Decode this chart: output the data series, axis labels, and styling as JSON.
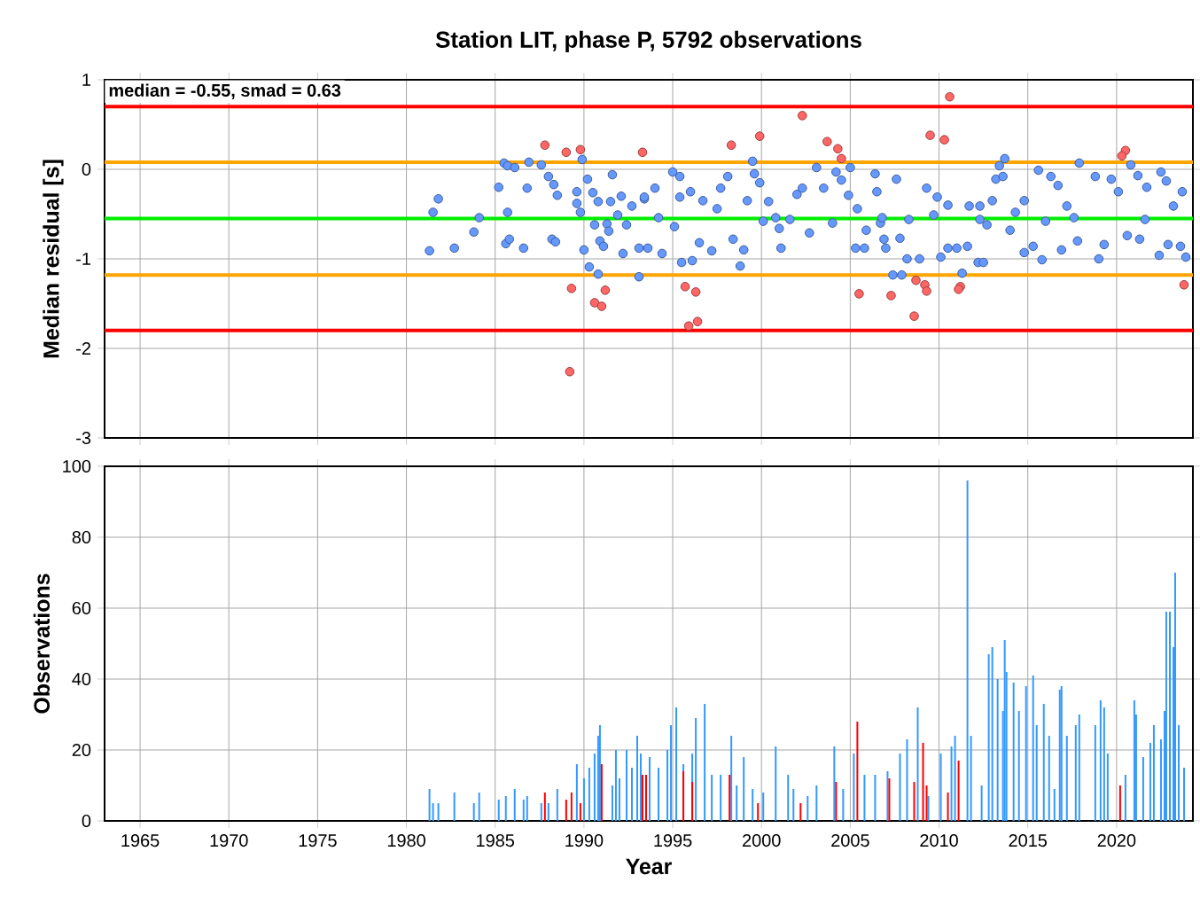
{
  "chart_data": [
    {
      "type": "scatter",
      "title": "Station LIT, phase P, 5792 observations",
      "ylabel": "Median residual [s]",
      "xlim": [
        1963,
        2024.3
      ],
      "ylim": [
        -3,
        1
      ],
      "xticks": [
        1965,
        1970,
        1975,
        1980,
        1985,
        1990,
        1995,
        2000,
        2005,
        2010,
        2015,
        2020
      ],
      "yticks": [
        -3,
        -2,
        -1,
        0,
        1
      ],
      "grid": true,
      "tick_labels": "y",
      "marker": "circle",
      "annotations": [
        "median = -0.55, smad = 0.63"
      ],
      "ref_lines": [
        {
          "axis": "y",
          "value": 0.7,
          "color": "#ff0000"
        },
        {
          "axis": "y",
          "value": -1.8,
          "color": "#ff0000"
        },
        {
          "axis": "y",
          "value": 0.08,
          "color": "#ffa500"
        },
        {
          "axis": "y",
          "value": -1.18,
          "color": "#ffa500"
        },
        {
          "axis": "y",
          "value": -0.55,
          "color": "#00ee00"
        }
      ],
      "series": [
        {
          "color": "#6699ff",
          "x": [
            1981.3,
            1981.5,
            1981.8,
            1982.7,
            1983.8,
            1984.1,
            1985.2,
            1985.5,
            1985.7,
            1986.1,
            1985.6,
            1985.8,
            1985.7,
            1986.6,
            1986.8,
            1986.9,
            1987.6,
            1988.0,
            1988.3,
            1988.5,
            1988.2,
            1988.4,
            1989.9,
            1990.2,
            1989.6,
            1989.6,
            1989.8,
            1990.0,
            1990.3,
            1990.8,
            1990.5,
            1990.8,
            1990.6,
            1990.9,
            1991.1,
            1991.6,
            1991.5,
            1991.3,
            1991.4,
            1991.9,
            1992.1,
            1992.2,
            1992.4,
            1992.7,
            1993.1,
            1993.1,
            1993.4,
            1993.4,
            1993.6,
            1994.0,
            1994.2,
            1994.4,
            1995.0,
            1995.4,
            1995.4,
            1995.5,
            1995.1,
            1996.0,
            1996.1,
            1996.5,
            1996.7,
            1997.2,
            1997.5,
            1997.7,
            1998.1,
            1998.4,
            1998.8,
            1999.0,
            1999.2,
            1999.5,
            1999.6,
            1999.9,
            2000.1,
            2000.4,
            2001.1,
            2001.0,
            2001.6,
            2002.0,
            2002.3,
            2002.7,
            2003.1,
            2003.5,
            2004.0,
            2004.2,
            2004.5,
            2004.9,
            2005.0,
            2005.3,
            2005.4,
            2005.8,
            2005.9,
            2006.4,
            2006.5,
            2006.7,
            2006.9,
            2007.0,
            2007.4,
            2007.6,
            2007.8,
            2007.9,
            2008.2,
            2008.3,
            2008.9,
            2009.3,
            2009.7,
            2009.9,
            2010.1,
            2010.5,
            2010.5,
            2011.0,
            2011.3,
            2011.6,
            2011.7,
            2012.2,
            2012.5,
            2012.3,
            2012.7,
            2013.0,
            2013.2,
            2013.4,
            2013.7,
            2013.6,
            2014.0,
            2014.3,
            2014.8,
            2014.8,
            2015.3,
            2015.6,
            2015.8,
            2016.0,
            2016.3,
            2016.7,
            2016.9,
            2017.2,
            2017.8,
            2017.9,
            2018.8,
            2019.0,
            2019.3,
            2019.7,
            2020.1,
            2020.6,
            2020.8,
            2021.3,
            2021.2,
            2021.7,
            2022.4,
            2022.5,
            2022.8,
            2022.9,
            2023.2,
            2023.6,
            2023.7,
            2023.9,
            2000.8,
            2006.8,
            2012.3,
            2017.6,
            2021.6
          ],
          "values": [
            -0.91,
            -0.48,
            -0.33,
            -0.88,
            -0.7,
            -0.54,
            -0.2,
            0.07,
            0.04,
            0.02,
            -0.83,
            -0.78,
            -0.48,
            -0.88,
            -0.21,
            0.08,
            0.05,
            -0.08,
            -0.17,
            -0.29,
            -0.78,
            -0.81,
            0.11,
            -0.11,
            -0.25,
            -0.38,
            -0.48,
            -0.9,
            -1.09,
            -1.17,
            -0.26,
            -0.36,
            -0.62,
            -0.8,
            -0.86,
            -0.06,
            -0.36,
            -0.61,
            -0.69,
            -0.51,
            -0.3,
            -0.94,
            -0.62,
            -0.41,
            -1.2,
            -0.88,
            -0.33,
            -0.31,
            -0.88,
            -0.21,
            -0.54,
            -0.94,
            -0.03,
            -0.08,
            -0.31,
            -1.04,
            -0.64,
            -0.25,
            -1.02,
            -0.82,
            -0.35,
            -0.91,
            -0.44,
            -0.21,
            -0.08,
            -0.78,
            -1.08,
            -0.9,
            -0.35,
            0.09,
            -0.05,
            -0.15,
            -0.58,
            -0.36,
            -0.88,
            -0.66,
            -0.56,
            -0.28,
            -0.21,
            -0.71,
            0.02,
            -0.21,
            -0.6,
            -0.03,
            -0.12,
            -0.29,
            0.02,
            -0.88,
            -0.44,
            -0.88,
            -0.68,
            -0.05,
            -0.25,
            -0.6,
            -0.78,
            -0.88,
            -1.18,
            -0.11,
            -0.77,
            -1.18,
            -1.0,
            -0.56,
            -1.0,
            -0.21,
            -0.51,
            -0.31,
            -0.98,
            -0.88,
            -0.4,
            -0.88,
            -1.16,
            -0.86,
            -0.41,
            -1.04,
            -1.04,
            -0.41,
            -0.62,
            -0.35,
            -0.11,
            0.04,
            0.12,
            -0.08,
            -0.68,
            -0.48,
            -0.35,
            -0.93,
            -0.86,
            -0.01,
            -1.01,
            -0.58,
            -0.08,
            -0.18,
            -0.9,
            -0.41,
            -0.8,
            0.07,
            -0.08,
            -1.0,
            -0.84,
            -0.11,
            -0.25,
            -0.74,
            0.05,
            -0.78,
            -0.07,
            -0.2,
            -0.96,
            -0.03,
            -0.13,
            -0.84,
            -0.41,
            -0.86,
            -0.25,
            -0.98,
            -0.54,
            -0.54,
            -0.56,
            -0.54,
            -0.56
          ]
        },
        {
          "color": "#ff6666",
          "x": [
            1987.8,
            1989.0,
            1989.8,
            1993.3,
            1989.3,
            1990.6,
            1991.0,
            1991.2,
            1989.2,
            1998.3,
            1999.9,
            2002.3,
            2003.7,
            2004.3,
            2004.5,
            2009.5,
            2010.3,
            2010.6,
            2020.5,
            2020.3,
            1995.7,
            1996.3,
            1995.9,
            1996.4,
            2005.5,
            2007.3,
            2008.7,
            2009.2,
            2009.3,
            2008.6,
            2011.2,
            2011.1,
            2023.8
          ],
          "values": [
            0.27,
            0.19,
            0.22,
            0.19,
            -1.33,
            -1.49,
            -1.53,
            -1.35,
            -2.26,
            0.27,
            0.37,
            0.6,
            0.31,
            0.23,
            0.12,
            0.38,
            0.33,
            0.81,
            0.21,
            0.15,
            -1.31,
            -1.37,
            -1.75,
            -1.7,
            -1.39,
            -1.41,
            -1.24,
            -1.29,
            -1.36,
            -1.64,
            -1.31,
            -1.34,
            -1.29
          ]
        }
      ]
    },
    {
      "type": "bar",
      "xlabel": "Year",
      "ylabel": "Observations",
      "xlim": [
        1963,
        2024.3
      ],
      "ylim": [
        0,
        100
      ],
      "xticks": [
        1965,
        1970,
        1975,
        1980,
        1985,
        1990,
        1995,
        2000,
        2005,
        2010,
        2015,
        2020
      ],
      "yticks": [
        0,
        20,
        40,
        60,
        80,
        100
      ],
      "grid": true,
      "x": [
        1981.3,
        1981.5,
        1981.8,
        1982.7,
        1983.8,
        1984.1,
        1985.2,
        1985.6,
        1986.1,
        1986.6,
        1986.8,
        1987.6,
        1987.8,
        1988.0,
        1988.5,
        1989.0,
        1989.3,
        1989.6,
        1989.8,
        1990.0,
        1990.3,
        1990.6,
        1990.8,
        1990.9,
        1991.0,
        1991.6,
        1991.8,
        1992.0,
        1992.4,
        1992.7,
        1993.0,
        1993.2,
        1993.3,
        1993.5,
        1993.7,
        1994.2,
        1994.7,
        1994.9,
        1995.2,
        1995.6,
        1996.1,
        1996.3,
        1996.8,
        1997.2,
        1997.7,
        1998.2,
        1998.3,
        1998.6,
        1999.0,
        1999.5,
        1999.8,
        2000.1,
        2000.8,
        2001.5,
        2001.8,
        2002.2,
        2002.6,
        2003.1,
        2004.1,
        2004.2,
        2004.6,
        2005.2,
        2005.4,
        2005.8,
        2006.4,
        2007.1,
        2007.2,
        2007.8,
        2008.2,
        2008.6,
        2008.8,
        2009.1,
        2009.3,
        2009.4,
        2010.1,
        2010.5,
        2010.7,
        2010.9,
        2011.1,
        2011.6,
        2011.8,
        2012.4,
        2012.8,
        2013.0,
        2013.3,
        2013.6,
        2013.7,
        2013.8,
        2014.2,
        2014.5,
        2014.9,
        2015.3,
        2015.5,
        2015.9,
        2016.2,
        2016.5,
        2016.8,
        2016.9,
        2017.2,
        2017.7,
        2017.9,
        2018.8,
        2019.1,
        2019.3,
        2019.5,
        2020.2,
        2020.5,
        2021.0,
        2021.1,
        2021.5,
        2021.9,
        2022.1,
        2022.5,
        2022.7,
        2022.8,
        2023.0,
        2023.2,
        2023.3,
        2023.5,
        2023.8
      ],
      "series": [
        {
          "color": "#3399ff",
          "values": [
            9,
            5,
            5,
            8,
            5,
            8,
            6,
            7,
            9,
            6,
            7,
            5,
            null,
            5,
            9,
            null,
            null,
            16,
            null,
            12,
            15,
            19,
            24,
            27,
            null,
            10,
            20,
            12,
            20,
            15,
            24,
            19,
            null,
            null,
            18,
            15,
            20,
            27,
            32,
            16,
            19,
            29,
            33,
            13,
            13,
            null,
            24,
            10,
            18,
            9,
            null,
            8,
            21,
            13,
            9,
            null,
            7,
            10,
            21,
            null,
            9,
            19,
            null,
            13,
            13,
            14,
            null,
            19,
            23,
            null,
            32,
            null,
            null,
            7,
            19,
            null,
            21,
            24,
            null,
            96,
            24,
            10,
            47,
            49,
            40,
            31,
            51,
            42,
            39,
            31,
            38,
            41,
            27,
            33,
            24,
            9,
            37,
            38,
            24,
            27,
            30,
            27,
            34,
            32,
            19,
            null,
            13,
            34,
            30,
            18,
            22,
            27,
            23,
            31,
            59,
            59,
            49,
            70,
            27,
            15
          ]
        },
        {
          "color": "#ff0000",
          "values": [
            null,
            null,
            null,
            null,
            null,
            null,
            null,
            null,
            null,
            null,
            null,
            null,
            8,
            null,
            null,
            6,
            8,
            null,
            5,
            null,
            null,
            null,
            null,
            null,
            16,
            null,
            null,
            null,
            null,
            null,
            null,
            null,
            13,
            13,
            null,
            null,
            null,
            null,
            null,
            14,
            11,
            null,
            null,
            null,
            null,
            13,
            null,
            null,
            null,
            null,
            5,
            null,
            null,
            null,
            null,
            5,
            null,
            null,
            null,
            11,
            null,
            null,
            28,
            null,
            null,
            null,
            12,
            null,
            null,
            11,
            null,
            22,
            10,
            null,
            null,
            8,
            null,
            null,
            17,
            null,
            null,
            null,
            null,
            null,
            null,
            null,
            null,
            null,
            null,
            null,
            null,
            null,
            null,
            null,
            null,
            null,
            null,
            null,
            null,
            null,
            null,
            null,
            null,
            null,
            null,
            10,
            null,
            null,
            null,
            null,
            null,
            null,
            null,
            null,
            null,
            null,
            null,
            null,
            null,
            null
          ]
        }
      ]
    }
  ]
}
